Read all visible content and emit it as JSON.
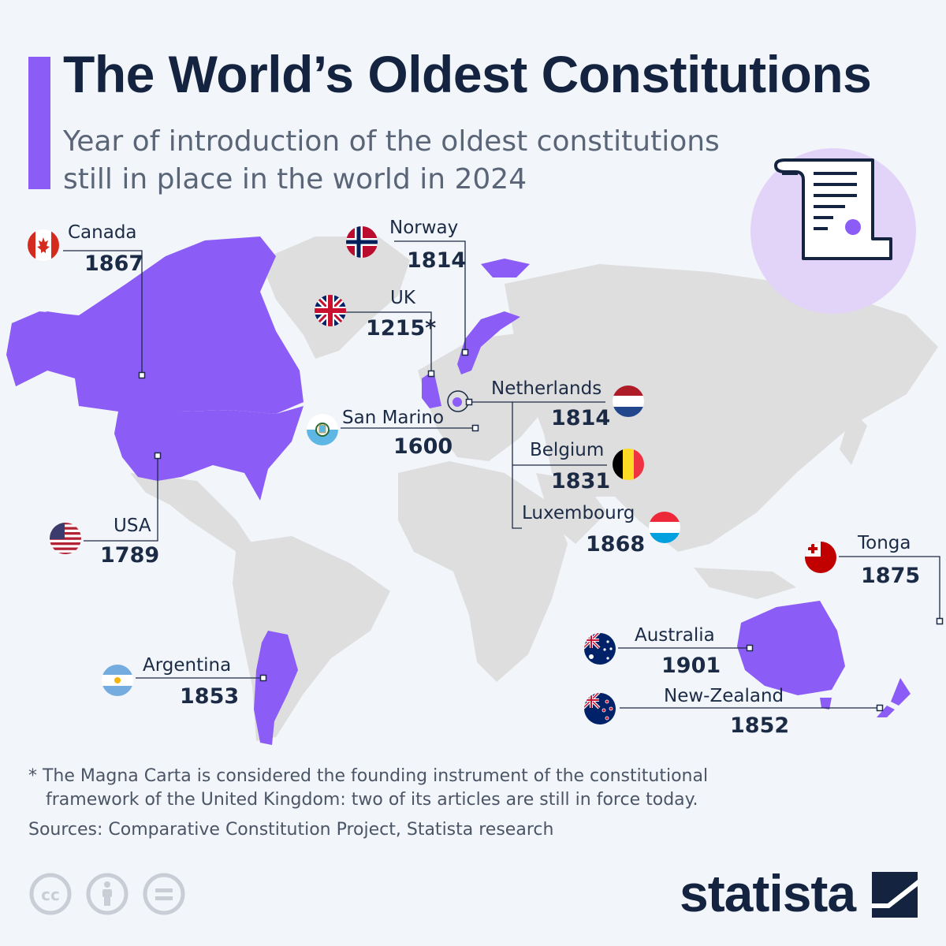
{
  "title": "The World’s Oldest Constitutions",
  "subtitle": "Year of introduction of the oldest constitutions still in place in the world in 2024",
  "colors": {
    "accent": "#8b5cf6",
    "land": "#dedede",
    "highlight": "#8b5cf6",
    "text": "#1c2b45",
    "background": "#f2f5fa"
  },
  "icons": {
    "header": "constitution-scroll-icon",
    "license": [
      "creative-commons-icon",
      "attribution-icon",
      "no-derivatives-icon"
    ],
    "brand": "statista-logo-icon"
  },
  "countries": [
    {
      "id": "canada",
      "name": "Canada",
      "year": "1867",
      "flag": "canada-flag-icon"
    },
    {
      "id": "norway",
      "name": "Norway",
      "year": "1814",
      "flag": "norway-flag-icon"
    },
    {
      "id": "uk",
      "name": "UK",
      "year": "1215*",
      "flag": "uk-flag-icon"
    },
    {
      "id": "netherlands",
      "name": "Netherlands",
      "year": "1814",
      "flag": "netherlands-flag-icon"
    },
    {
      "id": "sanmarino",
      "name": "San Marino",
      "year": "1600",
      "flag": "san-marino-flag-icon"
    },
    {
      "id": "belgium",
      "name": "Belgium",
      "year": "1831",
      "flag": "belgium-flag-icon"
    },
    {
      "id": "luxembourg",
      "name": "Luxembourg",
      "year": "1868",
      "flag": "luxembourg-flag-icon"
    },
    {
      "id": "usa",
      "name": "USA",
      "year": "1789",
      "flag": "usa-flag-icon"
    },
    {
      "id": "tonga",
      "name": "Tonga",
      "year": "1875",
      "flag": "tonga-flag-icon"
    },
    {
      "id": "australia",
      "name": "Australia",
      "year": "1901",
      "flag": "australia-flag-icon"
    },
    {
      "id": "argentina",
      "name": "Argentina",
      "year": "1853",
      "flag": "argentina-flag-icon"
    },
    {
      "id": "newzealand",
      "name": "New-Zealand",
      "year": "1852",
      "flag": "new-zealand-flag-icon"
    }
  ],
  "footnote": {
    "line1": "* The Magna Carta is considered the founding instrument of the constitutional",
    "line2": "framework of the United Kingdom: two of its articles are still in force today."
  },
  "sources": "Sources: Comparative Constitution Project, Statista research",
  "brand": "statista"
}
